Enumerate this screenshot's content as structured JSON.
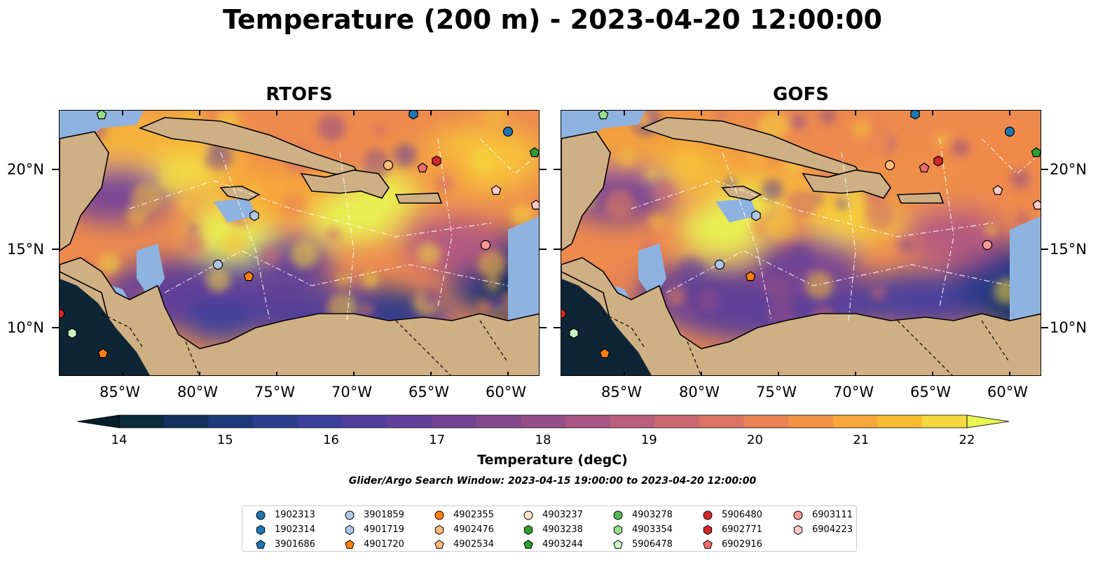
{
  "title": "Temperature (200 m) - 2023-04-20 12:00:00",
  "panels": [
    {
      "title": "RTOFS"
    },
    {
      "title": "GOFS"
    }
  ],
  "axes": {
    "lon_ticks": [
      "85°W",
      "80°W",
      "75°W",
      "70°W",
      "65°W",
      "60°W"
    ],
    "lat_ticks": [
      "20°N",
      "15°N",
      "10°N"
    ]
  },
  "colorbar": {
    "label": "Temperature (degC)",
    "ticks": [
      "14",
      "15",
      "16",
      "17",
      "18",
      "19",
      "20",
      "21",
      "22"
    ],
    "colors": [
      "#0b2a3c",
      "#13305f",
      "#1f3a7a",
      "#2c3f8f",
      "#3d3f9c",
      "#503f9e",
      "#623f9a",
      "#734393",
      "#84488c",
      "#964e88",
      "#a85583",
      "#bb5d7c",
      "#cc6872",
      "#db7465",
      "#e98255",
      "#f39346",
      "#f7a63a",
      "#f8bc33",
      "#f4d93e"
    ],
    "extend_low": "#061d2a",
    "extend_high": "#e8f553"
  },
  "search_window": "Glider/Argo Search Window: 2023-04-15 19:00:00 to 2023-04-20 12:00:00",
  "legend": [
    {
      "id": "1902313",
      "color": "#1f77b4",
      "marker": "circle"
    },
    {
      "id": "1902314",
      "color": "#1f77b4",
      "marker": "hexagon"
    },
    {
      "id": "3901686",
      "color": "#1f77b4",
      "marker": "pentagon"
    },
    {
      "id": "3901859",
      "color": "#aec7e8",
      "marker": "circle"
    },
    {
      "id": "4901719",
      "color": "#aec7e8",
      "marker": "hexagon"
    },
    {
      "id": "4901720",
      "color": "#ff7f0e",
      "marker": "pentagon"
    },
    {
      "id": "4902355",
      "color": "#ff7f0e",
      "marker": "circle"
    },
    {
      "id": "4902476",
      "color": "#ffbb78",
      "marker": "hexagon"
    },
    {
      "id": "4902534",
      "color": "#ffbb78",
      "marker": "pentagon"
    },
    {
      "id": "4903237",
      "color": "#ffe0c8",
      "marker": "circle"
    },
    {
      "id": "4903238",
      "color": "#2ca02c",
      "marker": "hexagon"
    },
    {
      "id": "4903244",
      "color": "#2ca02c",
      "marker": "pentagon"
    },
    {
      "id": "4903278",
      "color": "#55b755",
      "marker": "circle"
    },
    {
      "id": "4903354",
      "color": "#98df8a",
      "marker": "hexagon"
    },
    {
      "id": "5906478",
      "color": "#c9f3c0",
      "marker": "pentagon"
    },
    {
      "id": "5906480",
      "color": "#d62728",
      "marker": "circle"
    },
    {
      "id": "6902771",
      "color": "#d62728",
      "marker": "hexagon"
    },
    {
      "id": "6902916",
      "color": "#ee6b6b",
      "marker": "pentagon"
    },
    {
      "id": "6903111",
      "color": "#ff9896",
      "marker": "circle"
    },
    {
      "id": "6904223",
      "color": "#ffc8c8",
      "marker": "hexagon"
    }
  ]
}
